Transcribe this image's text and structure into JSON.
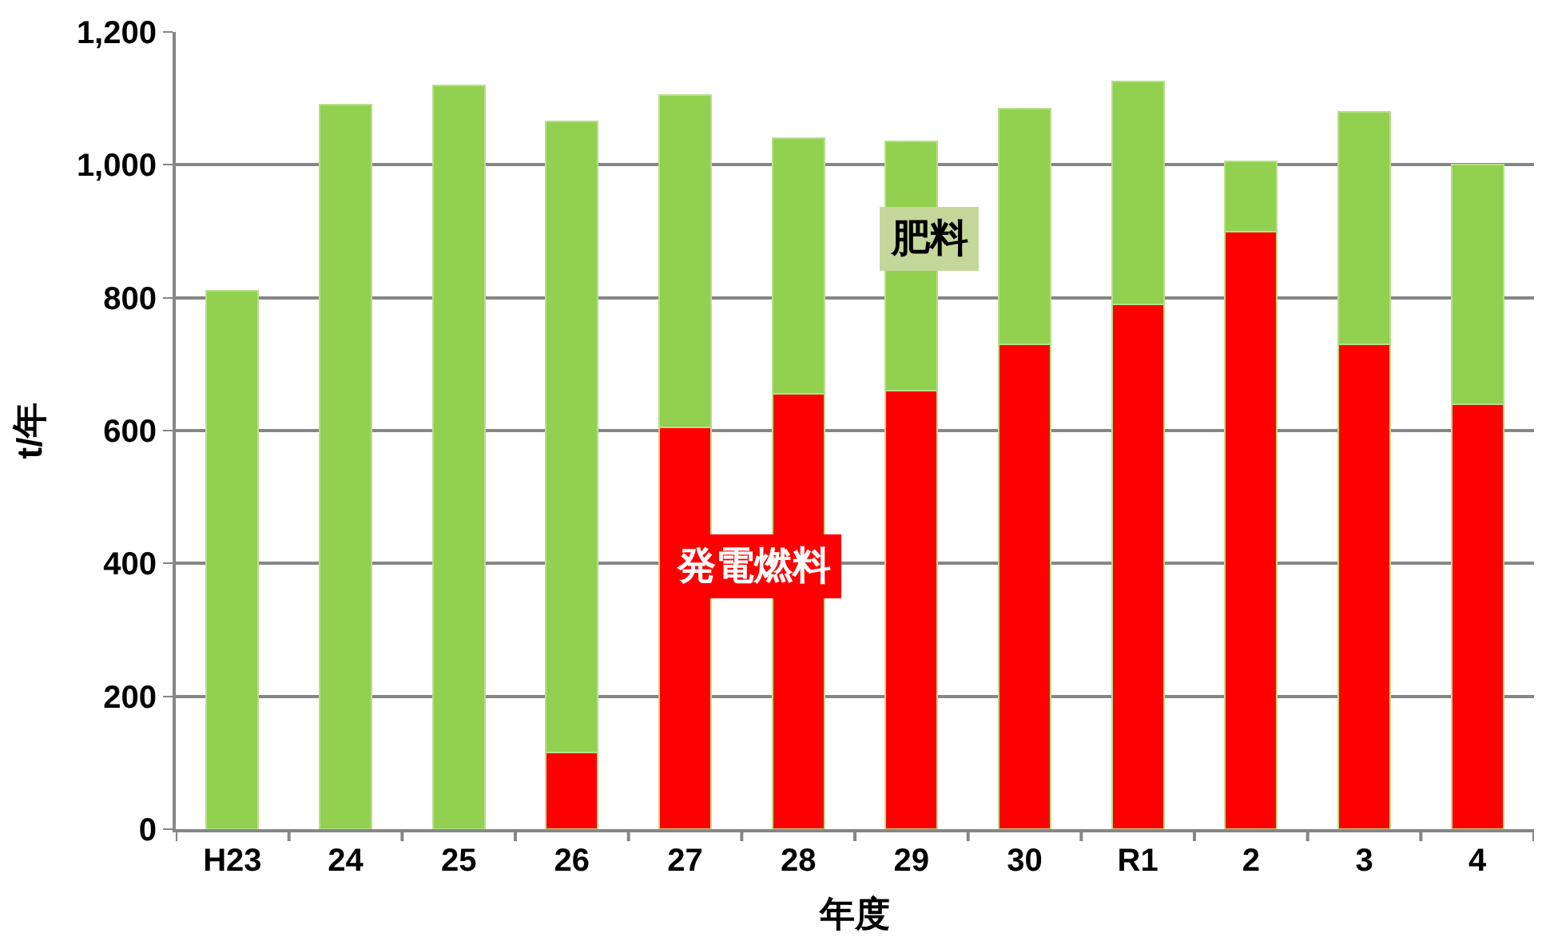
{
  "chart_data": {
    "type": "bar",
    "stacked": true,
    "xlabel": "年度",
    "ylabel": "t/年",
    "categories": [
      "H23",
      "24",
      "25",
      "26",
      "27",
      "28",
      "29",
      "30",
      "R1",
      "2",
      "3",
      "4"
    ],
    "series": [
      {
        "name": "発電燃料",
        "color": "#ff0000",
        "values": [
          0,
          0,
          0,
          115,
          605,
          655,
          660,
          730,
          790,
          900,
          730,
          640
        ]
      },
      {
        "name": "肥料",
        "color": "#92d050",
        "values": [
          810,
          1090,
          1120,
          950,
          500,
          385,
          375,
          355,
          335,
          105,
          350,
          360
        ]
      }
    ],
    "ylim": [
      0,
      1200
    ],
    "yticks": [
      {
        "value": 0,
        "label": "0"
      },
      {
        "value": 200,
        "label": "200"
      },
      {
        "value": 400,
        "label": "400"
      },
      {
        "value": 600,
        "label": "600"
      },
      {
        "value": 800,
        "label": "800"
      },
      {
        "value": 1000,
        "label": "1,000"
      },
      {
        "value": 1200,
        "label": "1,200"
      }
    ],
    "grid": "y",
    "legend": false
  }
}
